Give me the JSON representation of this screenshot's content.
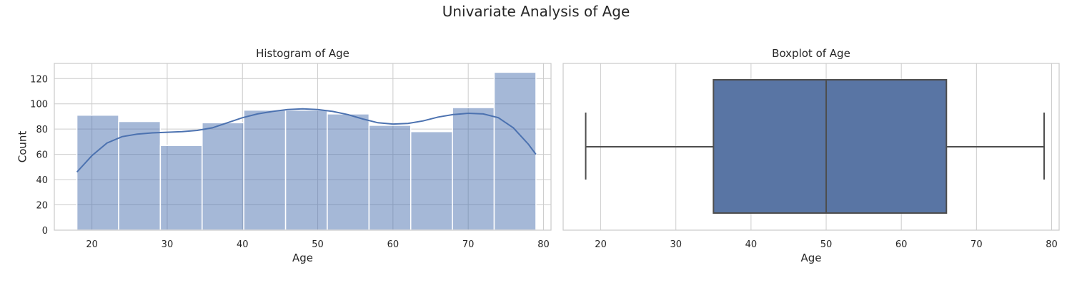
{
  "figure": {
    "title": "Univariate Analysis of Age"
  },
  "colors": {
    "bar_fill": "#4c72b0",
    "grid": "#cccccc",
    "axes_edge": "#cccccc",
    "box_fill": "#5975a4",
    "box_line": "#4d4d4d"
  },
  "chart_data": [
    {
      "type": "bar",
      "subtype": "histogram-with-kde",
      "title": "Histogram of Age",
      "xlabel": "Age",
      "ylabel": "Count",
      "xlim": [
        15,
        81
      ],
      "ylim": [
        0,
        132
      ],
      "xticks": [
        20,
        30,
        40,
        50,
        60,
        70,
        80
      ],
      "yticks": [
        0,
        20,
        40,
        60,
        80,
        100,
        120
      ],
      "grid": true,
      "bins": [
        {
          "start": 18.0,
          "end": 23.55,
          "count": 91
        },
        {
          "start": 23.55,
          "end": 29.09,
          "count": 86
        },
        {
          "start": 29.09,
          "end": 34.64,
          "count": 67
        },
        {
          "start": 34.64,
          "end": 40.18,
          "count": 85
        },
        {
          "start": 40.18,
          "end": 45.73,
          "count": 95
        },
        {
          "start": 45.73,
          "end": 51.27,
          "count": 95
        },
        {
          "start": 51.27,
          "end": 56.82,
          "count": 92
        },
        {
          "start": 56.82,
          "end": 62.36,
          "count": 83
        },
        {
          "start": 62.36,
          "end": 67.91,
          "count": 78
        },
        {
          "start": 67.91,
          "end": 73.45,
          "count": 97
        },
        {
          "start": 73.45,
          "end": 79.0,
          "count": 125
        }
      ],
      "kde": {
        "x": [
          18,
          20,
          22,
          24,
          26,
          28,
          30,
          32,
          34,
          36,
          38,
          40,
          42,
          44,
          46,
          48,
          50,
          52,
          54,
          56,
          58,
          60,
          62,
          64,
          66,
          68,
          70,
          72,
          74,
          76,
          78,
          79
        ],
        "y": [
          46,
          59,
          69,
          74,
          76,
          77,
          77.5,
          78,
          79,
          81,
          85,
          89,
          92,
          94,
          95.5,
          96,
          95.5,
          94,
          91.5,
          88,
          85,
          84,
          84.5,
          86.5,
          89.5,
          91.5,
          92.5,
          92,
          89,
          81,
          68,
          60
        ]
      }
    },
    {
      "type": "box",
      "title": "Boxplot of Age",
      "xlabel": "Age",
      "xlim": [
        15,
        81
      ],
      "xticks": [
        20,
        30,
        40,
        50,
        60,
        70,
        80
      ],
      "grid": true,
      "min": 18,
      "q1": 35,
      "median": 50,
      "q3": 66,
      "max": 79
    }
  ]
}
